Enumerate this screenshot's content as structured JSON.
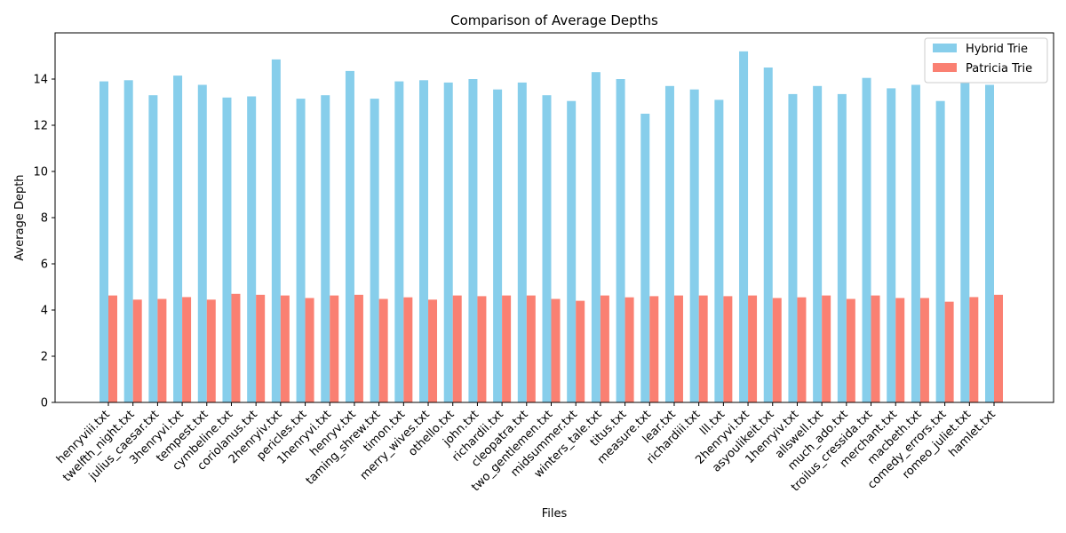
{
  "chart_data": {
    "type": "bar",
    "title": "Comparison of Average Depths",
    "xlabel": "Files",
    "ylabel": "Average Depth",
    "ylim": [
      0,
      16
    ],
    "yticks": [
      0,
      2,
      4,
      6,
      8,
      10,
      12,
      14
    ],
    "grid": false,
    "legend_position": "top-right",
    "categories": [
      "henryviii.txt",
      "twelfth_night.txt",
      "julius_caesar.txt",
      "3henryvi.txt",
      "tempest.txt",
      "cymbeline.txt",
      "coriolanus.txt",
      "2henryiv.txt",
      "pericles.txt",
      "1henryvi.txt",
      "henryv.txt",
      "taming_shrew.txt",
      "timon.txt",
      "merry_wives.txt",
      "othello.txt",
      "john.txt",
      "richardii.txt",
      "cleopatra.txt",
      "two_gentlemen.txt",
      "midsummer.txt",
      "winters_tale.txt",
      "titus.txt",
      "measure.txt",
      "lear.txt",
      "richardiii.txt",
      "lll.txt",
      "2henryvi.txt",
      "asyoulikeit.txt",
      "1henryiv.txt",
      "allswell.txt",
      "much_ado.txt",
      "troilus_cressida.txt",
      "merchant.txt",
      "macbeth.txt",
      "comedy_errors.txt",
      "romeo_juliet.txt",
      "hamlet.txt"
    ],
    "series": [
      {
        "name": "Hybrid Trie",
        "color": "#87ceeb",
        "values": [
          13.9,
          13.95,
          13.3,
          14.15,
          13.75,
          13.2,
          13.25,
          14.85,
          13.15,
          13.3,
          14.35,
          13.15,
          13.9,
          13.95,
          13.85,
          14.0,
          13.55,
          13.85,
          13.3,
          13.05,
          14.3,
          14.0,
          12.5,
          13.7,
          13.55,
          13.1,
          15.2,
          14.5,
          13.35,
          13.7,
          13.35,
          14.05,
          13.6,
          13.75,
          13.05,
          13.85,
          13.75
        ]
      },
      {
        "name": "Patricia Trie",
        "color": "#fa8072",
        "values": [
          4.63,
          4.45,
          4.48,
          4.56,
          4.45,
          4.7,
          4.66,
          4.63,
          4.52,
          4.63,
          4.66,
          4.48,
          4.55,
          4.45,
          4.63,
          4.6,
          4.63,
          4.63,
          4.48,
          4.4,
          4.63,
          4.55,
          4.6,
          4.63,
          4.63,
          4.6,
          4.63,
          4.52,
          4.55,
          4.63,
          4.48,
          4.63,
          4.52,
          4.52,
          4.36,
          4.56,
          4.66
        ]
      }
    ]
  }
}
